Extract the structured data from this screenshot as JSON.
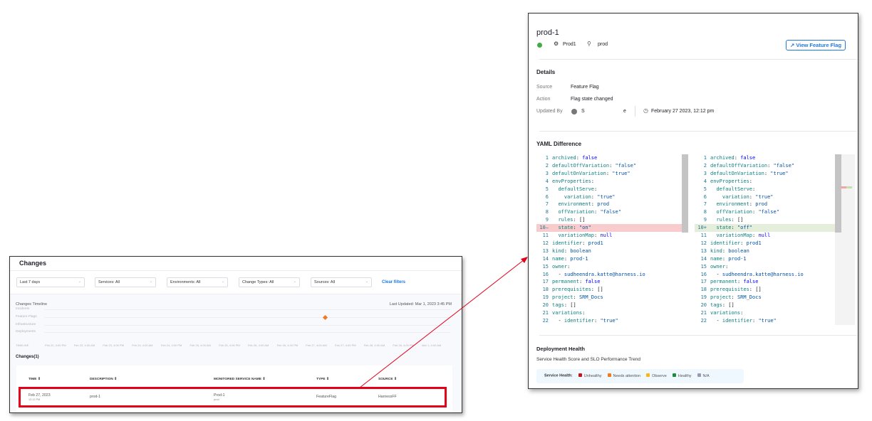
{
  "changes": {
    "title": "Changes",
    "filters": [
      {
        "label": "Last 7 days"
      },
      {
        "label": "Services: All"
      },
      {
        "label": "Environments: All"
      },
      {
        "label": "Change Types: All"
      },
      {
        "label": "Sources: All"
      }
    ],
    "clear_filters": "Clear filters",
    "timeline": {
      "title": "Changes Timeline",
      "last_updated": "Last Updated: Mar 1, 2023 3:45 PM",
      "rows": [
        "Incidents",
        "Feature Flags",
        "Infrastructure",
        "Deployments"
      ],
      "axis_title": "TIMELINE",
      "axis_labels": [
        "Feb 22, 4:00 PM",
        "Feb 23, 4:00 AM",
        "Feb 23, 4:00 PM",
        "Feb 24, 4:00 AM",
        "Feb 24, 4:00 PM",
        "Feb 25, 4:00 AM",
        "Feb 25, 4:00 PM",
        "Feb 26, 4:00 AM",
        "Feb 26, 4:00 PM",
        "Feb 27, 4:00 AM",
        "Feb 27, 4:00 PM",
        "Feb 28, 4:00 AM",
        "Feb 28, 4:00 PM",
        "Mar 1, 4:00 AM"
      ],
      "marker_color": "#f47a20"
    },
    "list_title": "Changes(1)",
    "columns": [
      "TIME",
      "DESCRIPTION",
      "MONITORED SERVICE NAME",
      "TYPE",
      "SOURCE"
    ],
    "row": {
      "date": "Feb 27, 2023",
      "time": "12:12 PM",
      "description": "prod-1",
      "service": "Prod-1",
      "service_env": "prod",
      "type": "FeatureFlag",
      "source": "HarnessFF"
    }
  },
  "detail": {
    "title": "prod-1",
    "service": "Prod1",
    "environment": "prod",
    "view_button": "View Feature Flag",
    "details_heading": "Details",
    "source_label": "Source",
    "source_value": "Feature Flag",
    "action_label": "Action",
    "action_value": "Flag state changed",
    "updated_by_label": "Updated By",
    "updated_by_start": "S",
    "updated_by_end": "e",
    "updated_at": "February 27 2023, 12:12 pm",
    "yaml_heading": "YAML Difference",
    "yaml_left": [
      "archived: false",
      "defaultOffVariation: \"false\"",
      "defaultOnVariation: \"true\"",
      "envProperties:",
      "  defaultServe:",
      "    variation: \"true\"",
      "  environment: prod",
      "  offVariation: \"false\"",
      "  rules: []",
      "  state: \"on\"",
      "  variationMap: null",
      "identifier: prod1",
      "kind: boolean",
      "name: prod-1",
      "owner:",
      "  - sudheendra.katte@harness.io",
      "permanent: false",
      "prerequisites: []",
      "project: SRM_Docs",
      "tags: []",
      "variations:",
      "  - identifier: \"true\""
    ],
    "yaml_right": [
      "archived: false",
      "defaultOffVariation: \"false\"",
      "defaultOnVariation: \"true\"",
      "envProperties:",
      "  defaultServe:",
      "    variation: \"true\"",
      "  environment: prod",
      "  offVariation: \"false\"",
      "  rules: []",
      "  state: \"off\"",
      "  variationMap: null",
      "identifier: prod1",
      "kind: boolean",
      "name: prod-1",
      "owner:",
      "  - sudheendra.katte@harness.io",
      "permanent: false",
      "prerequisites: []",
      "project: SRM_Docs",
      "tags: []",
      "variations:",
      "  - identifier: \"true\""
    ],
    "changed_line": 10,
    "removed_color": "#f8cccc",
    "added_color": "#e5eddb",
    "health_heading": "Deployment Health",
    "health_subtitle": "Service Health Score and SLO Performance Trend",
    "legend_title": "Service Health:",
    "legend": [
      {
        "label": "Unhealthy",
        "color": "#c4161c"
      },
      {
        "label": "Needs attention",
        "color": "#f47a20"
      },
      {
        "label": "Observe",
        "color": "#fcb519"
      },
      {
        "label": "Healthy",
        "color": "#1e8c3a"
      },
      {
        "label": "N/A",
        "color": "#9a9ab5"
      }
    ]
  }
}
